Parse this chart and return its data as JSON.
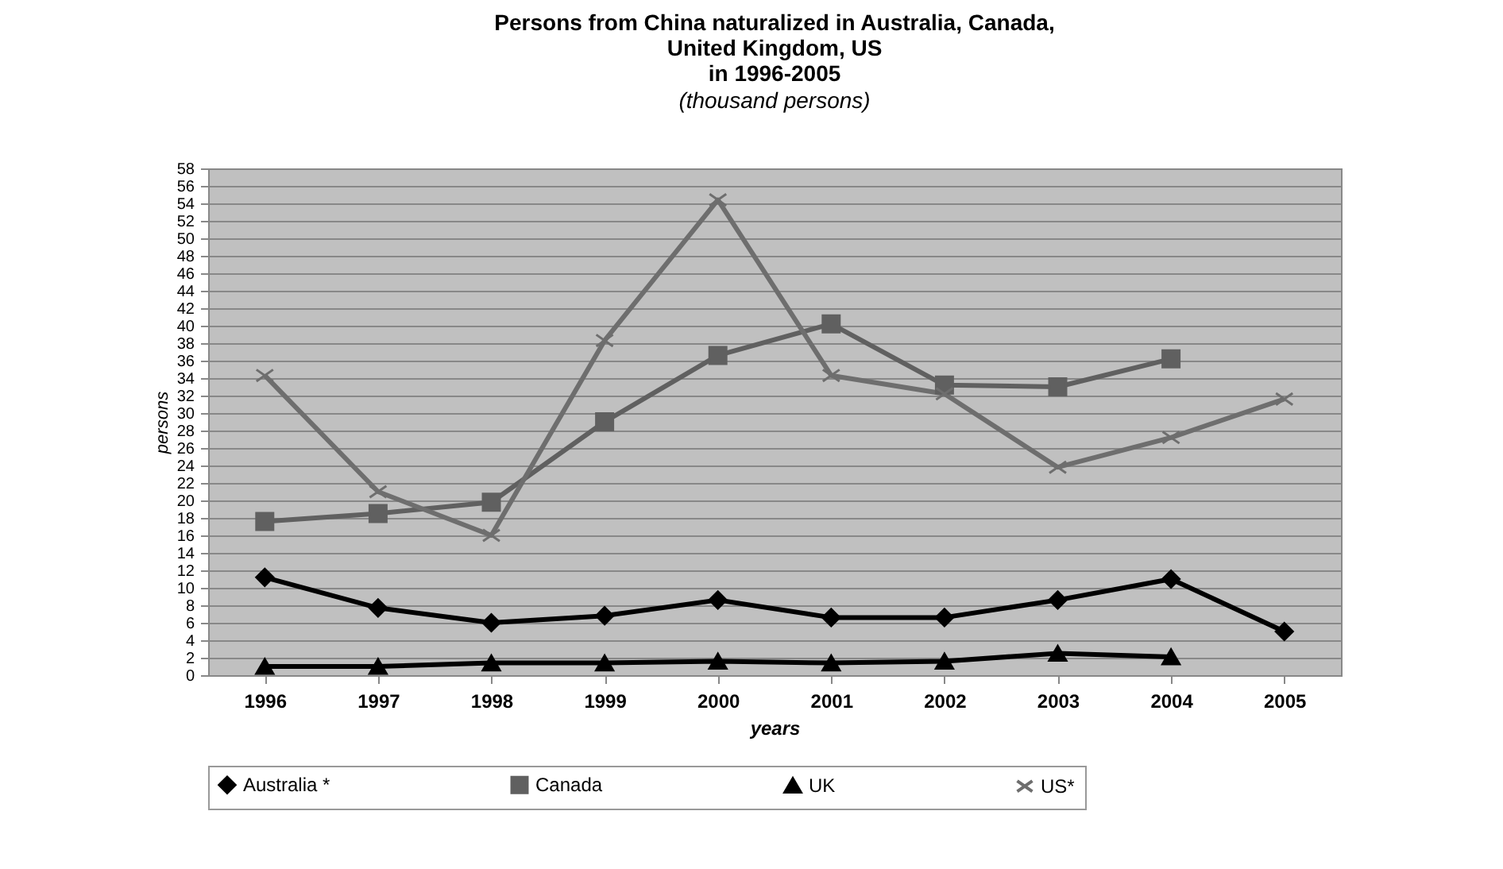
{
  "chart_data": {
    "type": "line",
    "title": "Persons from China naturalized  in Australia, Canada,\nUnited Kingdom, US\nin 1996-2005",
    "subtitle": "(thousand persons)",
    "xlabel": "years",
    "ylabel": "persons",
    "categories": [
      "1996",
      "1997",
      "1998",
      "1999",
      "2000",
      "2001",
      "2002",
      "2003",
      "2004",
      "2005"
    ],
    "ylim": [
      0,
      58
    ],
    "yticks": [
      0,
      2,
      4,
      6,
      8,
      10,
      12,
      14,
      16,
      18,
      20,
      22,
      24,
      26,
      28,
      30,
      32,
      34,
      36,
      38,
      40,
      42,
      44,
      46,
      48,
      50,
      52,
      54,
      56,
      58
    ],
    "grid": "y",
    "legend": "bottom",
    "series": [
      {
        "name": "Australia *",
        "color": "#000000",
        "marker": "diamond",
        "values": [
          11.2,
          7.7,
          6.0,
          6.8,
          8.6,
          6.6,
          6.6,
          8.6,
          11.0,
          5.0
        ]
      },
      {
        "name": "Canada",
        "color": "#606060",
        "marker": "square",
        "values": [
          17.6,
          18.5,
          19.8,
          29.0,
          36.6,
          40.2,
          33.2,
          33.0,
          36.2,
          null
        ]
      },
      {
        "name": "UK",
        "color": "#000000",
        "marker": "triangle",
        "values": [
          1.0,
          1.0,
          1.4,
          1.4,
          1.6,
          1.4,
          1.6,
          2.5,
          2.1,
          null
        ]
      },
      {
        "name": "US*",
        "color": "#6e6e6e",
        "marker": "cross",
        "values": [
          34.3,
          21.0,
          16.0,
          38.3,
          54.4,
          34.3,
          32.2,
          23.8,
          27.2,
          31.6
        ]
      }
    ]
  }
}
